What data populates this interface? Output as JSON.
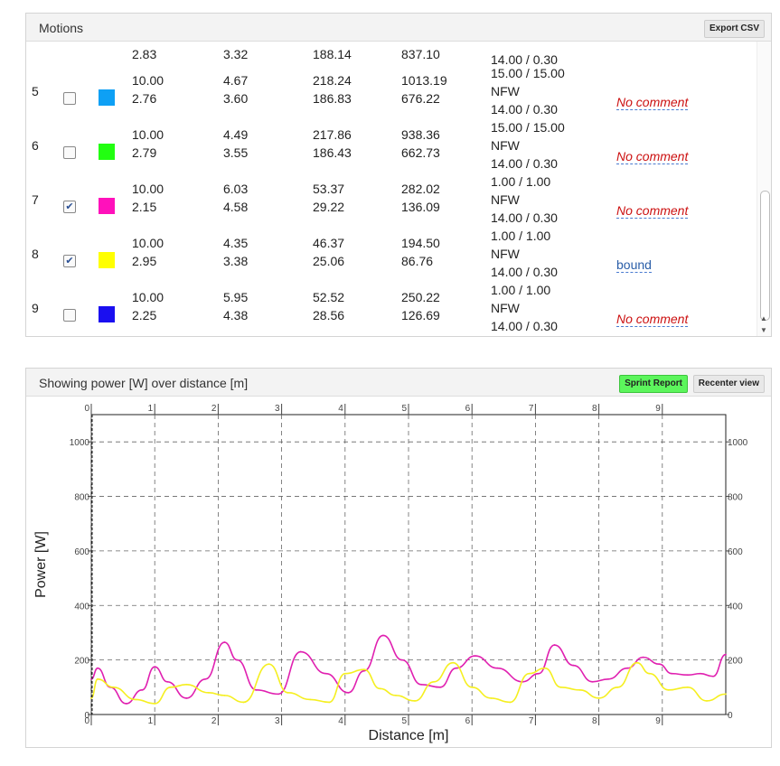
{
  "motions": {
    "title": "Motions",
    "export_label": "Export CSV",
    "partial_top": [
      "2.83",
      "3.32",
      "188.14",
      "837.10",
      "14.00 / 0.30"
    ],
    "rows": [
      {
        "id": "5",
        "checked": false,
        "color": "#0ea0f5",
        "a": [
          "10.00",
          "2.76"
        ],
        "b": [
          "4.67",
          "3.60"
        ],
        "c": [
          "218.24",
          "186.83"
        ],
        "d": [
          "1013.19",
          "676.22"
        ],
        "e": [
          "15.00 / 15.00",
          "NFW",
          "14.00 / 0.30"
        ],
        "comment": "No comment"
      },
      {
        "id": "6",
        "checked": false,
        "color": "#22ff11",
        "a": [
          "10.00",
          "2.79"
        ],
        "b": [
          "4.49",
          "3.55"
        ],
        "c": [
          "217.86",
          "186.43"
        ],
        "d": [
          "938.36",
          "662.73"
        ],
        "e": [
          "15.00 / 15.00",
          "NFW",
          "14.00 / 0.30"
        ],
        "comment": "No comment"
      },
      {
        "id": "7",
        "checked": true,
        "color": "#ff11bb",
        "a": [
          "10.00",
          "2.15"
        ],
        "b": [
          "6.03",
          "4.58"
        ],
        "c": [
          "53.37",
          "29.22"
        ],
        "d": [
          "282.02",
          "136.09"
        ],
        "e": [
          "1.00 / 1.00",
          "NFW",
          "14.00 / 0.30"
        ],
        "comment": "No comment"
      },
      {
        "id": "8",
        "checked": true,
        "color": "#ffff00",
        "a": [
          "10.00",
          "2.95"
        ],
        "b": [
          "4.35",
          "3.38"
        ],
        "c": [
          "46.37",
          "25.06"
        ],
        "d": [
          "194.50",
          "86.76"
        ],
        "e": [
          "1.00 / 1.00",
          "NFW",
          "14.00 / 0.30"
        ],
        "comment": "bound"
      },
      {
        "id": "9",
        "checked": false,
        "color": "#1a0ff0",
        "a": [
          "10.00",
          "2.25"
        ],
        "b": [
          "5.95",
          "4.38"
        ],
        "c": [
          "52.52",
          "28.56"
        ],
        "d": [
          "250.22",
          "126.69"
        ],
        "e": [
          "1.00 / 1.00",
          "NFW",
          "14.00 / 0.30"
        ],
        "comment": "No comment"
      }
    ]
  },
  "chart_panel": {
    "title": "Showing power [W] over distance [m]",
    "sprint_label": "Sprint Report",
    "recenter_label": "Recenter view",
    "sprint_color": "#5cf55c"
  },
  "chart_data": {
    "type": "line",
    "xlabel": "Distance [m]",
    "ylabel": "Power [W]",
    "xlim": [
      0,
      10
    ],
    "ylim": [
      0,
      1100
    ],
    "xticks": [
      0,
      1,
      2,
      3,
      4,
      5,
      6,
      7,
      8,
      9
    ],
    "yticks": [
      0,
      200,
      400,
      600,
      800,
      1000
    ],
    "grid": true,
    "series": [
      {
        "color": "#e020b0",
        "x": [
          0,
          0.1,
          0.3,
          0.55,
          0.8,
          1.0,
          1.2,
          1.5,
          1.8,
          2.1,
          2.3,
          2.6,
          2.95,
          3.3,
          3.7,
          4.05,
          4.3,
          4.6,
          4.9,
          5.2,
          5.5,
          5.75,
          6.05,
          6.4,
          6.8,
          7.05,
          7.3,
          7.6,
          7.9,
          8.15,
          8.45,
          8.7,
          8.95,
          9.15,
          9.4,
          9.6,
          9.8,
          10
        ],
        "y": [
          130,
          170,
          100,
          40,
          90,
          175,
          120,
          60,
          130,
          265,
          200,
          90,
          75,
          230,
          150,
          80,
          160,
          290,
          200,
          110,
          100,
          170,
          215,
          170,
          120,
          150,
          255,
          180,
          120,
          130,
          170,
          210,
          185,
          150,
          145,
          150,
          140,
          220
        ]
      },
      {
        "color": "#f5ef20",
        "x": [
          0,
          0.1,
          0.35,
          0.7,
          1.0,
          1.25,
          1.5,
          1.85,
          2.1,
          2.4,
          2.8,
          3.1,
          3.45,
          3.75,
          4.0,
          4.3,
          4.55,
          4.8,
          5.1,
          5.4,
          5.7,
          6.0,
          6.3,
          6.6,
          6.9,
          7.15,
          7.4,
          7.7,
          8.0,
          8.3,
          8.6,
          8.8,
          9.1,
          9.4,
          9.7,
          10
        ],
        "y": [
          60,
          130,
          100,
          55,
          40,
          100,
          110,
          80,
          70,
          45,
          185,
          80,
          55,
          45,
          150,
          165,
          95,
          70,
          50,
          120,
          190,
          100,
          60,
          45,
          150,
          170,
          100,
          90,
          60,
          100,
          190,
          150,
          90,
          100,
          50,
          75
        ]
      }
    ]
  }
}
